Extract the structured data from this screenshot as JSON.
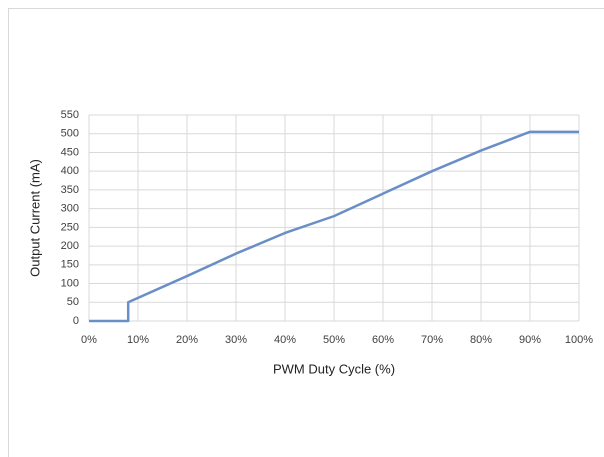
{
  "chart_data": {
    "type": "line",
    "x_label": "PWM Duty Cycle (%)",
    "y_label": "Output Current (mA)",
    "x": [
      0,
      8,
      8,
      20,
      30,
      40,
      50,
      60,
      70,
      80,
      90,
      100
    ],
    "series": [
      {
        "color": "#6a8fc7",
        "values": [
          0,
          0,
          50,
          120,
          180,
          235,
          280,
          340,
          400,
          455,
          505,
          505
        ]
      }
    ],
    "xlim": [
      0,
      100
    ],
    "xticks": [
      {
        "value": 0,
        "label": "0%"
      },
      {
        "value": 10,
        "label": "10%"
      },
      {
        "value": 20,
        "label": "20%"
      },
      {
        "value": 30,
        "label": "30%"
      },
      {
        "value": 40,
        "label": "40%"
      },
      {
        "value": 50,
        "label": "50%"
      },
      {
        "value": 60,
        "label": "60%"
      },
      {
        "value": 70,
        "label": "70%"
      },
      {
        "value": 80,
        "label": "80%"
      },
      {
        "value": 90,
        "label": "90%"
      },
      {
        "value": 100,
        "label": "100%"
      }
    ],
    "ylim": [
      0,
      550
    ],
    "yticks": [
      0,
      50,
      100,
      150,
      200,
      250,
      300,
      350,
      400,
      450,
      500,
      550
    ],
    "grid": true
  }
}
